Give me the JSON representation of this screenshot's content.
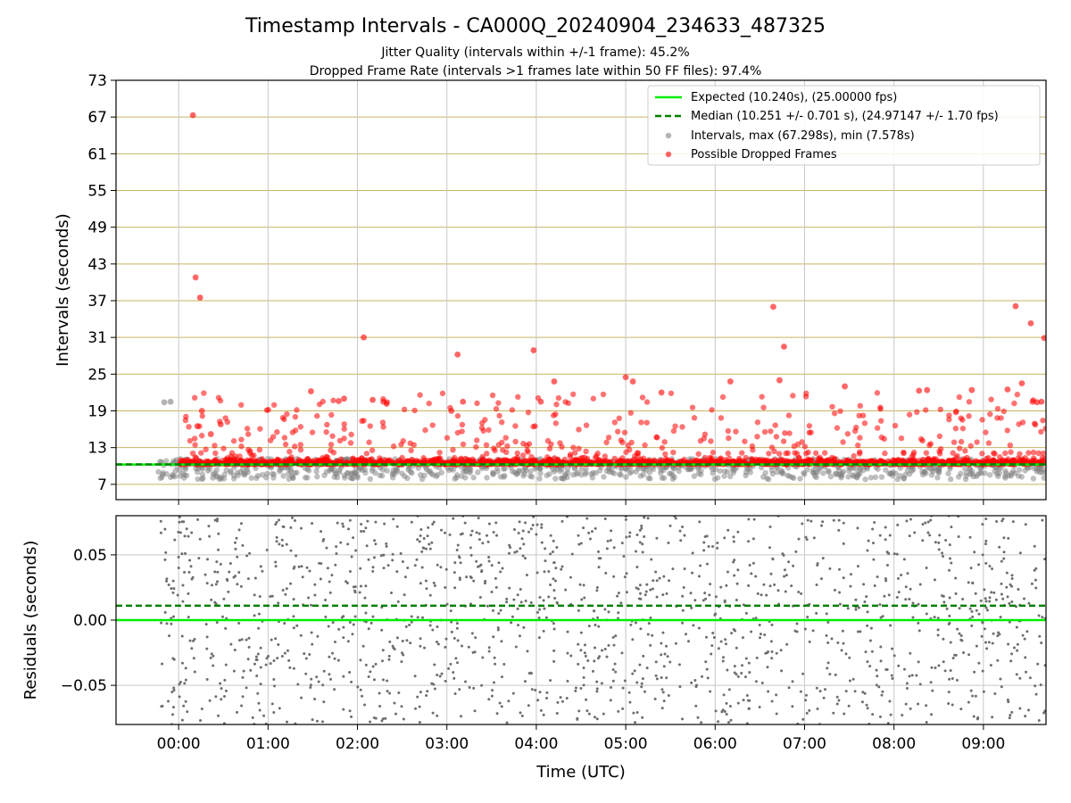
{
  "chart_data": {
    "type": "scatter",
    "title": "Timestamp Intervals - CA000Q_20240904_234633_487325",
    "subtitle_lines": [
      "Jitter Quality (intervals within +/-1 frame): 45.2%",
      "Dropped Frame Rate (intervals >1 frames late within 50 FF files): 97.4%"
    ],
    "xlabel": "Time (UTC)",
    "x_unit": "hours since 00:00 UTC",
    "xlim": [
      -0.7,
      9.7
    ],
    "x_ticks": [
      0,
      1,
      2,
      3,
      4,
      5,
      6,
      7,
      8,
      9
    ],
    "x_tick_labels": [
      "00:00",
      "01:00",
      "02:00",
      "03:00",
      "04:00",
      "05:00",
      "06:00",
      "07:00",
      "08:00",
      "09:00"
    ],
    "top_panel": {
      "ylabel": "Intervals (seconds)",
      "ylim": [
        4.5,
        73
      ],
      "y_ticks": [
        7,
        13,
        19,
        25,
        31,
        37,
        43,
        49,
        55,
        61,
        67,
        73
      ],
      "y_tick_labels": [
        "7",
        "13",
        "19",
        "25",
        "31",
        "37",
        "43",
        "49",
        "55",
        "61",
        "67",
        "73"
      ],
      "horizontal_gridlines": true,
      "vertical_gridlines": true,
      "legend_position": "top-right",
      "legend": [
        "Expected (10.240s), (25.00000 fps)",
        "Median (10.251 +/- 0.701 s), (24.97147 +/- 1.70 fps)",
        "Intervals, max (67.298s), min (7.578s)",
        "Possible Dropped Frames"
      ],
      "expected_line": 10.24,
      "median_line": 10.251,
      "dense_band": {
        "x_start": 0,
        "x_end": 9.7,
        "y_center": 10.4,
        "spread": 1.2
      },
      "grey_band": {
        "x_start": -0.25,
        "x_end": 9.7,
        "y_range": [
          7.8,
          11.2
        ]
      },
      "notable_intervals": [
        {
          "x": -0.16,
          "y": 20.4,
          "kind": "interval"
        },
        {
          "x": -0.09,
          "y": 20.5,
          "kind": "interval"
        },
        {
          "x": 0.16,
          "y": 67.3,
          "kind": "dropped"
        },
        {
          "x": 0.19,
          "y": 40.8,
          "kind": "dropped"
        },
        {
          "x": 0.24,
          "y": 37.5,
          "kind": "dropped"
        },
        {
          "x": 0.26,
          "y": 19.0,
          "kind": "dropped"
        },
        {
          "x": 0.21,
          "y": 16.5,
          "kind": "dropped"
        },
        {
          "x": 0.36,
          "y": 15.2,
          "kind": "dropped"
        },
        {
          "x": 0.47,
          "y": 16.8,
          "kind": "dropped"
        },
        {
          "x": 1.48,
          "y": 22.2,
          "kind": "dropped"
        },
        {
          "x": 1.79,
          "y": 20.6,
          "kind": "dropped"
        },
        {
          "x": 1.85,
          "y": 21.0,
          "kind": "dropped"
        },
        {
          "x": 2.07,
          "y": 31.0,
          "kind": "dropped"
        },
        {
          "x": 2.17,
          "y": 20.8,
          "kind": "dropped"
        },
        {
          "x": 2.29,
          "y": 20.5,
          "kind": "dropped"
        },
        {
          "x": 2.33,
          "y": 20.4,
          "kind": "dropped"
        },
        {
          "x": 3.12,
          "y": 28.2,
          "kind": "dropped"
        },
        {
          "x": 3.18,
          "y": 20.5,
          "kind": "dropped"
        },
        {
          "x": 3.05,
          "y": 19.0,
          "kind": "dropped"
        },
        {
          "x": 3.97,
          "y": 28.9,
          "kind": "dropped"
        },
        {
          "x": 4.2,
          "y": 23.8,
          "kind": "dropped"
        },
        {
          "x": 4.05,
          "y": 20.5,
          "kind": "dropped"
        },
        {
          "x": 5.0,
          "y": 24.5,
          "kind": "dropped"
        },
        {
          "x": 5.08,
          "y": 23.8,
          "kind": "dropped"
        },
        {
          "x": 5.4,
          "y": 22.0,
          "kind": "dropped"
        },
        {
          "x": 6.17,
          "y": 23.8,
          "kind": "dropped"
        },
        {
          "x": 6.65,
          "y": 36.0,
          "kind": "dropped"
        },
        {
          "x": 6.77,
          "y": 29.5,
          "kind": "dropped"
        },
        {
          "x": 6.72,
          "y": 24.0,
          "kind": "dropped"
        },
        {
          "x": 7.45,
          "y": 23.0,
          "kind": "dropped"
        },
        {
          "x": 8.37,
          "y": 22.4,
          "kind": "dropped"
        },
        {
          "x": 8.28,
          "y": 22.3,
          "kind": "dropped"
        },
        {
          "x": 8.87,
          "y": 22.4,
          "kind": "dropped"
        },
        {
          "x": 9.27,
          "y": 22.5,
          "kind": "dropped"
        },
        {
          "x": 9.36,
          "y": 36.1,
          "kind": "dropped"
        },
        {
          "x": 9.53,
          "y": 33.3,
          "kind": "dropped"
        },
        {
          "x": 9.68,
          "y": 30.9,
          "kind": "dropped"
        },
        {
          "x": 9.43,
          "y": 23.5,
          "kind": "dropped"
        },
        {
          "x": 9.55,
          "y": 20.5,
          "kind": "dropped"
        },
        {
          "x": 9.6,
          "y": 20.4,
          "kind": "dropped"
        },
        {
          "x": 9.65,
          "y": 20.5,
          "kind": "dropped"
        }
      ]
    },
    "bottom_panel": {
      "ylabel": "Residuals (seconds)",
      "ylim": [
        -0.08,
        0.08
      ],
      "y_ticks": [
        -0.05,
        0,
        0.05
      ],
      "y_tick_labels": [
        "−0.05",
        "0.00",
        "0.05"
      ],
      "horizontal_gridlines": true,
      "vertical_gridlines": true,
      "expected_line": 0.0,
      "median_line": 0.011,
      "residual_scatter": {
        "x_start": -0.2,
        "x_end": 9.7,
        "y_range": [
          -0.08,
          0.08
        ],
        "point_count": 1500
      }
    },
    "colors": {
      "expected": "#00ee00",
      "median": "#007f00",
      "intervals": "#808080",
      "dropped": "#ff0000",
      "gridline_horizontal": "#c8b464",
      "gridline_vertical": "#c8c8c8",
      "residual_points": "#6e6e6e"
    }
  }
}
